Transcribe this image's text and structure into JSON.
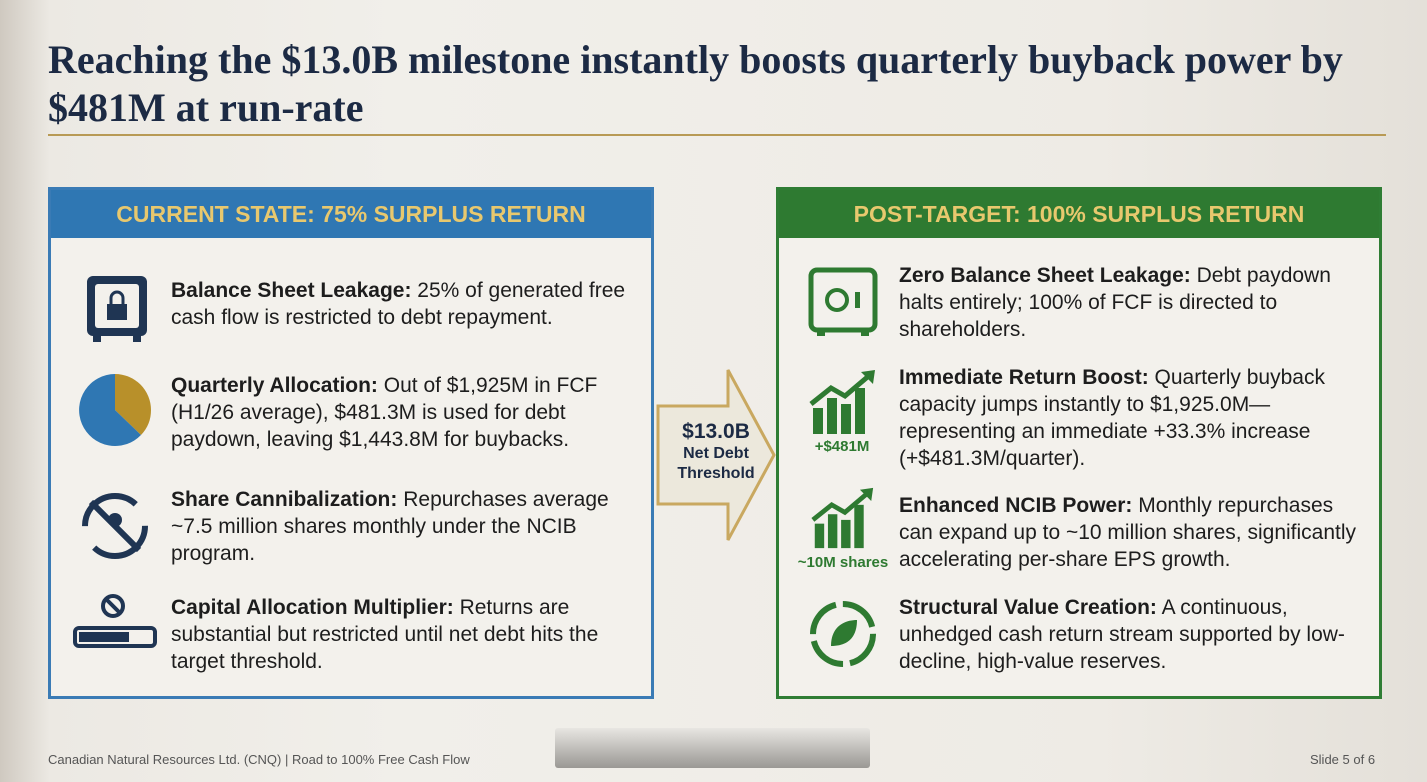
{
  "header": {
    "title": "Reaching the $13.0B milestone instantly boosts quarterly buyback power by $481M at run-rate"
  },
  "left_panel": {
    "heading": "CURRENT STATE: 75% SURPLUS RETURN",
    "items": [
      {
        "lead": "Balance Sheet Leakage:",
        "text": "25% of generated free cash flow is restricted to debt repayment."
      },
      {
        "lead": "Quarterly Allocation:",
        "text": "Out of $1,925M in FCF (H1/26 average), $481.3M is used for debt paydown, leaving $1,443.8M for buybacks."
      },
      {
        "lead": "Share Cannibalization:",
        "text": "Repurchases average ~7.5 million shares monthly under the NCIB program."
      },
      {
        "lead": "Capital Allocation Multiplier:",
        "text": "Returns are substantial but restricted until net debt hits the target threshold."
      }
    ]
  },
  "arrow": {
    "label": "$13.0B",
    "sublabel": "Net Debt Threshold"
  },
  "right_panel": {
    "heading": "POST-TARGET: 100% SURPLUS RETURN",
    "items": [
      {
        "lead": "Zero Balance Sheet Leakage:",
        "text": "Debt paydown halts entirely; 100% of FCF is directed to shareholders."
      },
      {
        "lead": "Immediate Return Boost:",
        "text": "Quarterly buyback capacity jumps instantly to $1,925.0M—representing an immediate +33.3% increase (+$481.3M/quarter).",
        "icon_label": "+$481M"
      },
      {
        "lead": "Enhanced NCIB Power:",
        "text": "Monthly repurchases can expand up to ~10 million shares, significantly accelerating per-share EPS growth.",
        "icon_label": "~10M shares"
      },
      {
        "lead": "Structural Value Creation:",
        "text": "A continuous, unhedged cash return stream supported by low-decline, high-value reserves."
      }
    ]
  },
  "footer": {
    "source": "Canadian Natural Resources Ltd. (CNQ) | Road to 100% Free Cash Flow",
    "page": "Slide 5 of 6"
  }
}
